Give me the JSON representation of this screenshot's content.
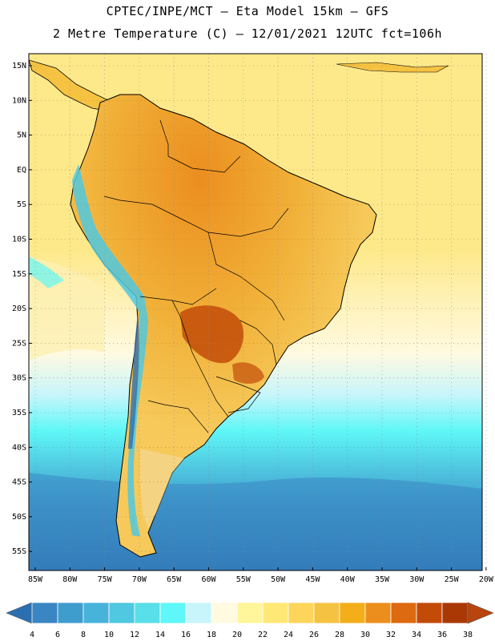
{
  "header": {
    "line1": "CPTEC/INPE/MCT –  Eta Model 15km – GFS",
    "line2": "2 Metre Temperature (C) – 12/01/2021 12UTC fct=106h"
  },
  "axes": {
    "lat_labels": [
      "15N",
      "10N",
      "5N",
      "EQ",
      "5S",
      "10S",
      "15S",
      "20S",
      "25S",
      "30S",
      "35S",
      "40S",
      "45S",
      "50S",
      "55S"
    ],
    "lon_labels": [
      "85W",
      "80W",
      "75W",
      "70W",
      "65W",
      "60W",
      "55W",
      "50W",
      "45W",
      "40W",
      "35W",
      "30W",
      "25W",
      "20W"
    ]
  },
  "colorbar": {
    "ticks": [
      "4",
      "6",
      "8",
      "10",
      "12",
      "14",
      "16",
      "18",
      "20",
      "22",
      "24",
      "26",
      "28",
      "30",
      "32",
      "34",
      "36",
      "38"
    ],
    "colors": [
      "#2c6fb0",
      "#3a86c2",
      "#3f9dce",
      "#47b3da",
      "#50c8e1",
      "#58dfe9",
      "#5ff7f7",
      "#c8f5fb",
      "#fffae0",
      "#fff59a",
      "#ffe875",
      "#fcd55a",
      "#f5c242",
      "#f3ae1a",
      "#ec8e1e",
      "#dd6a10",
      "#c24b08",
      "#aa3805",
      "#b8440e"
    ]
  },
  "regions": {
    "ocean_warm": "#fde98a",
    "ocean_mid": "#fdf1b8",
    "ocean_cool": "#5ff7f7",
    "ocean_cold": "#3f9dce",
    "ocean_coldest": "#2c6fb0",
    "land_hot": "#ec9a24",
    "land_warm": "#f5c242",
    "land_hottest": "#c24b08",
    "andes_cold": "#50c8e1",
    "patagonia": "#f3d58a"
  }
}
